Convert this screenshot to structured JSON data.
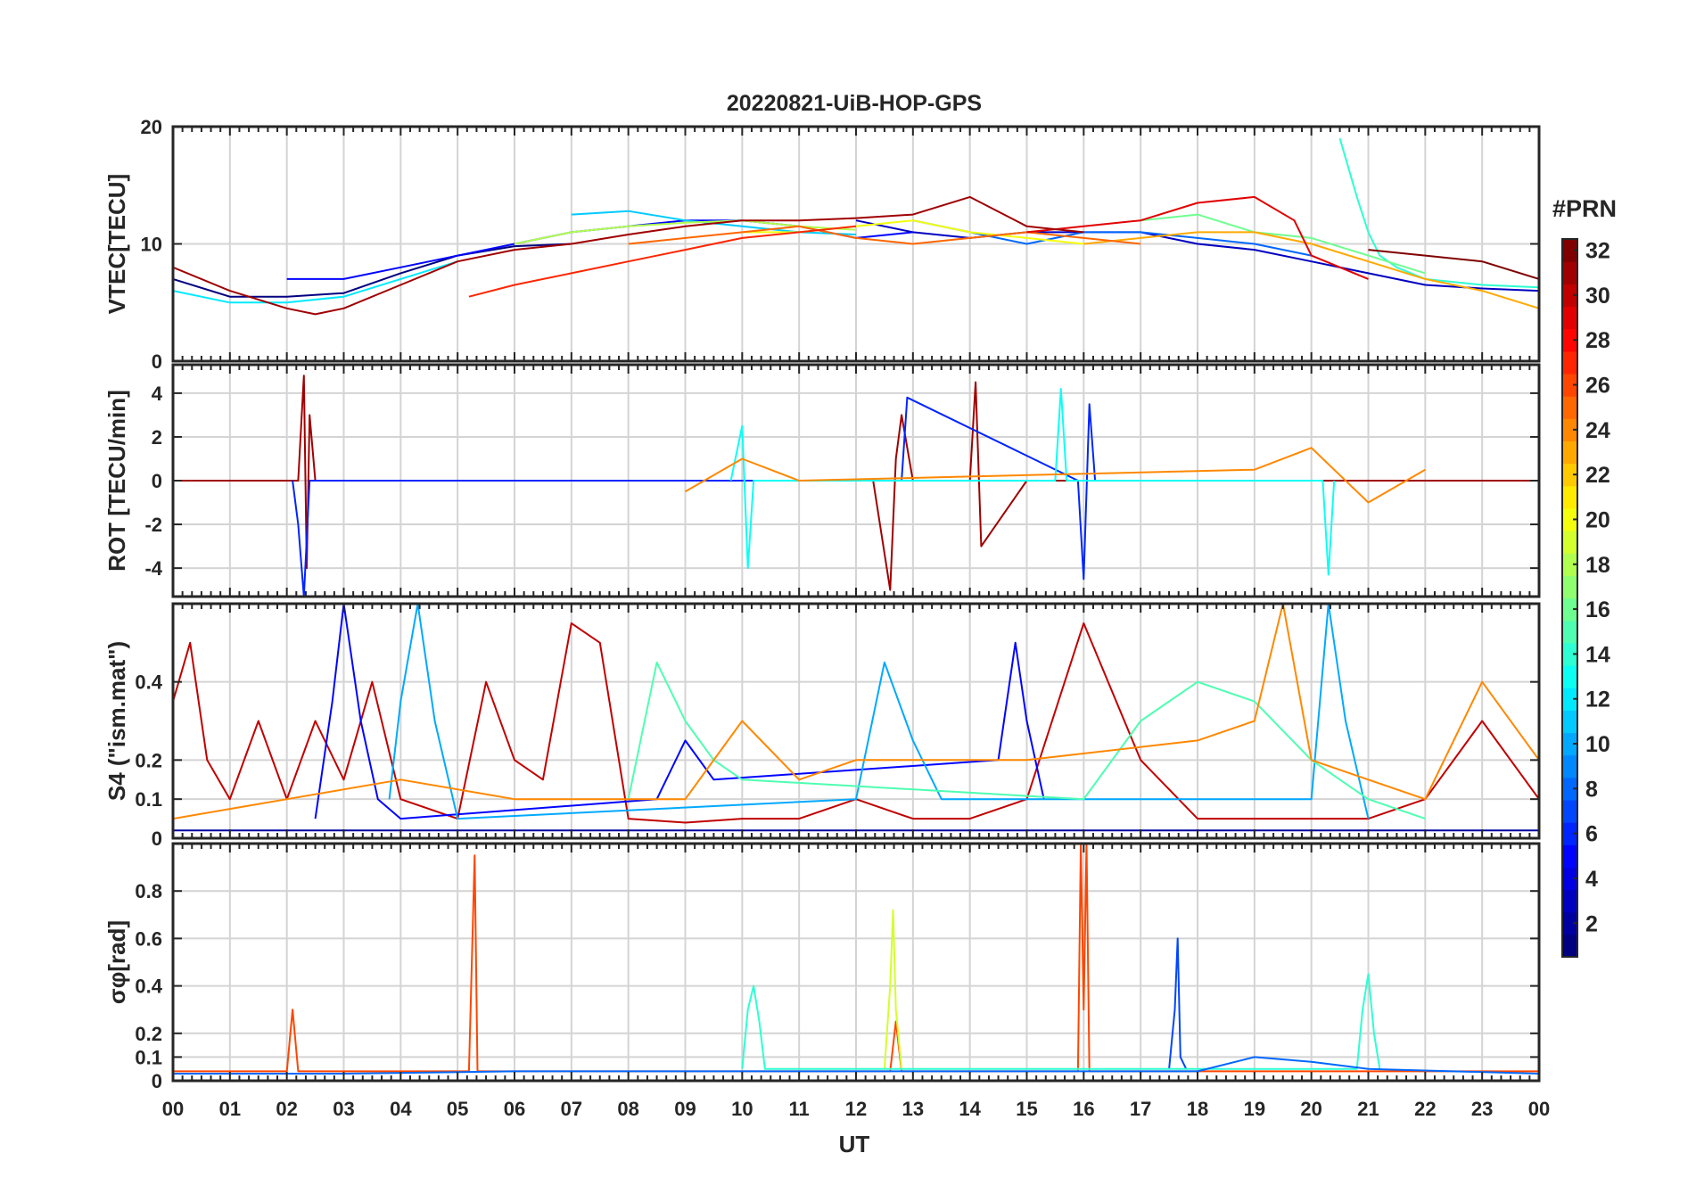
{
  "figure_title": "20220821-UiB-HOP-GPS",
  "chart_data": {
    "type": "line",
    "title": "20220821-UiB-HOP-GPS",
    "xlabel": "UT",
    "x_unit": "hour",
    "xlim": [
      0,
      24
    ],
    "x_tick_labels": [
      "00",
      "01",
      "02",
      "03",
      "04",
      "05",
      "06",
      "07",
      "08",
      "09",
      "10",
      "11",
      "12",
      "13",
      "14",
      "15",
      "16",
      "17",
      "18",
      "19",
      "20",
      "21",
      "22",
      "23",
      "00"
    ],
    "grid": true,
    "colorbar": {
      "label": "#PRN",
      "range": [
        1,
        32
      ],
      "ticks": [
        2,
        4,
        6,
        8,
        10,
        12,
        14,
        16,
        18,
        20,
        22,
        24,
        26,
        28,
        30,
        32
      ],
      "tick_labels": [
        "2",
        "4",
        "6",
        "8",
        "10",
        "12",
        "14",
        "16",
        "18",
        "20",
        "22",
        "24",
        "26",
        "28",
        "30",
        "32"
      ],
      "colormap": "jet",
      "colors": [
        "#00008f",
        "#0000ff",
        "#007fff",
        "#00ffff",
        "#7fff7f",
        "#ffff00",
        "#ff7f00",
        "#ff0000",
        "#7f0000"
      ]
    },
    "panels": [
      {
        "name": "vtec",
        "ylabel": "VTEC[TECU]",
        "ylim": [
          0,
          20
        ],
        "yticks": [
          0,
          10,
          20
        ],
        "ytick_labels": [
          "0",
          "10",
          "20"
        ],
        "series": [
          {
            "prn": 1,
            "x": [
              0,
              1,
              2,
              3,
              4,
              5,
              6,
              7
            ],
            "y": [
              7,
              5.5,
              5.5,
              5.8,
              7.5,
              9,
              9.8,
              10
            ]
          },
          {
            "prn": 3,
            "x": [
              12,
              13,
              14,
              15,
              16,
              17,
              18,
              19,
              20,
              21,
              22,
              23,
              24
            ],
            "y": [
              12,
              11,
              10.5,
              11,
              11,
              11,
              10,
              9.5,
              8.5,
              7.5,
              6.5,
              6.2,
              6
            ]
          },
          {
            "prn": 5,
            "x": [
              2,
              3,
              4,
              5,
              6,
              7,
              8,
              9,
              10,
              11,
              12,
              13
            ],
            "y": [
              7,
              7,
              8,
              9,
              10,
              11,
              11.5,
              12,
              12,
              11.5,
              10.5,
              11
            ]
          },
          {
            "prn": 8,
            "x": [
              13,
              14,
              15,
              16,
              17,
              18,
              19,
              20
            ],
            "y": [
              12,
              11,
              10,
              11,
              11,
              10.5,
              10,
              9
            ]
          },
          {
            "prn": 11,
            "x": [
              7,
              8,
              9,
              10,
              11,
              12
            ],
            "y": [
              12.5,
              12.8,
              12,
              11.5,
              11,
              10.8
            ]
          },
          {
            "prn": 12,
            "x": [
              0,
              1,
              2,
              3,
              4,
              5
            ],
            "y": [
              6,
              5,
              5,
              5.5,
              7,
              8.5
            ]
          },
          {
            "prn": 14,
            "x": [
              20.5,
              20.8,
              21,
              21.2,
              21.5,
              22,
              23,
              24
            ],
            "y": [
              19,
              14,
              11,
              9,
              8,
              7,
              6.5,
              6.3
            ]
          },
          {
            "prn": 16,
            "x": [
              17,
              18,
              19,
              20,
              21,
              22
            ],
            "y": [
              12,
              12.5,
              11,
              10.5,
              9,
              7.5
            ]
          },
          {
            "prn": 18,
            "x": [
              6,
              7,
              8,
              9,
              10,
              11,
              12
            ],
            "y": [
              10,
              11,
              11.5,
              11.8,
              12,
              11.5,
              11.2
            ]
          },
          {
            "prn": 20,
            "x": [
              10,
              11,
              12,
              13,
              14,
              15,
              16
            ],
            "y": [
              11,
              11,
              11.5,
              12,
              11,
              10.5,
              10
            ]
          },
          {
            "prn": 23,
            "x": [
              16,
              17,
              18,
              19,
              20,
              21,
              22,
              23,
              24
            ],
            "y": [
              10,
              10.5,
              11,
              11,
              10,
              8.5,
              7,
              6,
              4.5
            ]
          },
          {
            "prn": 25,
            "x": [
              8,
              9,
              10,
              11,
              12,
              13,
              14,
              15,
              16,
              17
            ],
            "y": [
              10,
              10.5,
              11,
              11.5,
              10.5,
              10,
              10.5,
              11,
              10.5,
              10
            ]
          },
          {
            "prn": 27,
            "x": [
              5.2,
              6,
              7,
              8,
              9,
              10,
              11,
              12
            ],
            "y": [
              5.5,
              6.5,
              7.5,
              8.5,
              9.5,
              10.5,
              11,
              11.5
            ]
          },
          {
            "prn": 29,
            "x": [
              15,
              16,
              17,
              18,
              19,
              19.7,
              20,
              21
            ],
            "y": [
              11,
              11.5,
              12,
              13.5,
              14,
              12,
              9,
              7
            ]
          },
          {
            "prn": 31,
            "x": [
              0,
              1,
              2,
              2.5,
              3,
              4,
              5,
              6,
              7,
              8,
              9,
              10,
              11,
              12,
              13,
              14,
              15,
              16
            ],
            "y": [
              8,
              6,
              4.5,
              4,
              4.5,
              6.5,
              8.5,
              9.5,
              10,
              10.8,
              11.5,
              12,
              12,
              12.2,
              12.5,
              14,
              11.5,
              11
            ]
          },
          {
            "prn": 32,
            "x": [
              21,
              22,
              23,
              24
            ],
            "y": [
              9.5,
              9,
              8.5,
              7
            ]
          }
        ]
      },
      {
        "name": "rot",
        "ylabel": "ROT [TECU/min]",
        "ylim": [
          -5.3,
          5.3
        ],
        "yticks": [
          -4,
          -2,
          0,
          2,
          4
        ],
        "ytick_labels": [
          "-4",
          "-2",
          "0",
          "2",
          "4"
        ],
        "series": [
          {
            "prn": 31,
            "x": [
              0,
              2.2,
              2.3,
              2.35,
              2.4,
              2.5,
              5,
              8,
              9,
              12.3,
              12.6,
              12.7,
              12.8,
              13,
              14,
              14.1,
              14.2,
              15,
              16,
              17,
              18,
              19,
              20,
              21,
              22,
              23,
              24
            ],
            "y": [
              0,
              0,
              4.8,
              -4,
              3,
              0,
              0,
              0,
              0,
              0,
              -5,
              1,
              3,
              0,
              0,
              4.5,
              -3,
              0,
              0,
              0,
              0,
              0,
              0,
              0,
              0,
              0,
              0
            ]
          },
          {
            "prn": 6,
            "x": [
              2.1,
              2.2,
              2.3,
              2.4,
              12.8,
              12.9,
              15.9,
              16,
              16.1,
              16.2
            ],
            "y": [
              0,
              -2,
              -5.3,
              0,
              0,
              3.8,
              0,
              -4.5,
              3.5,
              0
            ]
          },
          {
            "prn": 13,
            "x": [
              9.8,
              10,
              10.1,
              10.2,
              15.5,
              15.6,
              15.7,
              20.2,
              20.3,
              20.4
            ],
            "y": [
              0,
              2.5,
              -4,
              0,
              0,
              4.2,
              0,
              0,
              -4.3,
              0
            ]
          },
          {
            "prn": 24,
            "x": [
              9,
              10,
              11,
              19,
              20,
              21,
              22
            ],
            "y": [
              -0.5,
              1,
              0,
              0.5,
              1.5,
              -1,
              0.5
            ]
          }
        ]
      },
      {
        "name": "s4",
        "ylabel": "S4 (\"ism.mat\")",
        "ylim": [
          0,
          0.6
        ],
        "yticks": [
          0,
          0.1,
          0.2,
          0.4
        ],
        "ytick_labels": [
          "0",
          "0.1",
          "0.2",
          "0.4"
        ],
        "series": [
          {
            "prn": 30,
            "x": [
              0,
              0.3,
              0.6,
              1,
              1.5,
              2,
              2.5,
              3,
              3.5,
              4,
              5,
              5.5,
              6,
              6.5,
              7,
              7.5,
              8,
              9,
              10,
              11,
              12,
              13,
              14,
              15,
              16,
              17,
              18,
              19,
              20,
              21,
              22,
              23,
              24
            ],
            "y": [
              0.35,
              0.5,
              0.2,
              0.1,
              0.3,
              0.1,
              0.3,
              0.15,
              0.4,
              0.1,
              0.05,
              0.4,
              0.2,
              0.15,
              0.55,
              0.5,
              0.05,
              0.04,
              0.05,
              0.05,
              0.1,
              0.05,
              0.05,
              0.1,
              0.55,
              0.2,
              0.05,
              0.05,
              0.05,
              0.05,
              0.1,
              0.3,
              0.1
            ]
          },
          {
            "prn": 5,
            "x": [
              2.5,
              2.8,
              3,
              3.3,
              3.6,
              4,
              8.5,
              9,
              9.5,
              14.5,
              14.8,
              15,
              15.3
            ],
            "y": [
              0.05,
              0.35,
              0.6,
              0.3,
              0.1,
              0.05,
              0.1,
              0.25,
              0.15,
              0.2,
              0.5,
              0.3,
              0.1
            ]
          },
          {
            "prn": 10,
            "x": [
              3.8,
              4,
              4.3,
              4.6,
              5,
              12,
              12.5,
              13,
              13.5,
              20,
              20.3,
              20.6,
              21
            ],
            "y": [
              0.1,
              0.35,
              0.6,
              0.3,
              0.05,
              0.1,
              0.45,
              0.25,
              0.1,
              0.1,
              0.6,
              0.3,
              0.05
            ]
          },
          {
            "prn": 15,
            "x": [
              8,
              8.5,
              9,
              9.5,
              10,
              16,
              17,
              18,
              19,
              20,
              21,
              22
            ],
            "y": [
              0.1,
              0.45,
              0.3,
              0.2,
              0.15,
              0.1,
              0.3,
              0.4,
              0.35,
              0.2,
              0.1,
              0.05
            ]
          },
          {
            "prn": 24,
            "x": [
              0,
              2,
              4,
              6,
              9,
              10,
              11,
              12,
              15,
              18,
              19,
              19.5,
              20,
              21,
              22,
              23,
              24
            ],
            "y": [
              0.05,
              0.1,
              0.15,
              0.1,
              0.1,
              0.3,
              0.15,
              0.2,
              0.2,
              0.25,
              0.3,
              0.6,
              0.2,
              0.15,
              0.1,
              0.4,
              0.2
            ]
          },
          {
            "prn": 2,
            "x": [
              0,
              3,
              6,
              9,
              12,
              15,
              18,
              21,
              24
            ],
            "y": [
              0.02,
              0.02,
              0.02,
              0.02,
              0.02,
              0.02,
              0.02,
              0.02,
              0.02
            ]
          }
        ]
      },
      {
        "name": "sigma_phi",
        "ylabel": "σφ[rad]",
        "ylim": [
          0,
          1
        ],
        "yticks": [
          0,
          0.1,
          0.2,
          0.4,
          0.6,
          0.8
        ],
        "ytick_labels": [
          "0",
          "0.1",
          "0.2",
          "0.4",
          "0.6",
          "0.8"
        ],
        "series": [
          {
            "prn": 26,
            "x": [
              0,
              2,
              2.1,
              2.2,
              5.2,
              5.3,
              5.35,
              5.4,
              10,
              12.6,
              12.7,
              12.8,
              15.9,
              15.95,
              16,
              16.05,
              16.1,
              24
            ],
            "y": [
              0.04,
              0.04,
              0.3,
              0.04,
              0.04,
              0.95,
              0.04,
              0.04,
              0.04,
              0.04,
              0.25,
              0.04,
              0.04,
              1,
              0.3,
              1,
              0.04,
              0.04
            ]
          },
          {
            "prn": 19,
            "x": [
              12.5,
              12.6,
              12.65,
              12.7,
              12.8
            ],
            "y": [
              0.05,
              0.4,
              0.72,
              0.3,
              0.05
            ]
          },
          {
            "prn": 7,
            "x": [
              17.5,
              17.6,
              17.65,
              17.7,
              17.8
            ],
            "y": [
              0.05,
              0.3,
              0.6,
              0.1,
              0.05
            ]
          },
          {
            "prn": 14,
            "x": [
              10,
              10.1,
              10.2,
              10.3,
              10.4,
              20.8,
              20.9,
              21,
              21.1,
              21.2
            ],
            "y": [
              0.05,
              0.3,
              0.4,
              0.25,
              0.05,
              0.05,
              0.3,
              0.45,
              0.2,
              0.05
            ]
          },
          {
            "prn": 8,
            "x": [
              0,
              3,
              6,
              9,
              12,
              15,
              18,
              19,
              20,
              21,
              24
            ],
            "y": [
              0.03,
              0.03,
              0.04,
              0.04,
              0.04,
              0.04,
              0.04,
              0.1,
              0.08,
              0.05,
              0.03
            ]
          }
        ]
      }
    ]
  }
}
